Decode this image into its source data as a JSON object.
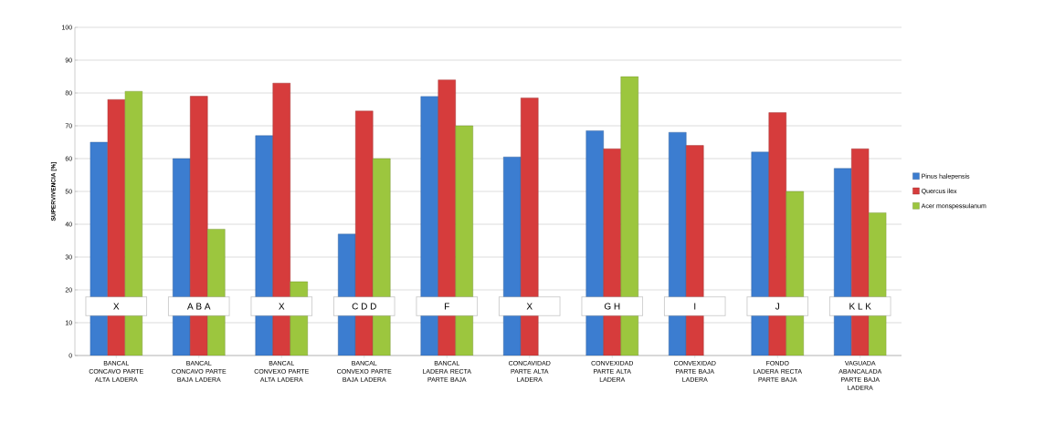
{
  "chart_data": {
    "type": "bar",
    "ylabel": "SUPERVIVENCIA  [%]",
    "categories": [
      "BANCAL CONCAVO PARTE ALTA LADERA",
      "BANCAL CONCAVO PARTE BAJA LADERA",
      "BANCAL CONVEXO PARTE ALTA LADERA",
      "BANCAL CONVEXO PARTE BAJA LADERA",
      "BANCAL LADERA RECTA PARTE BAJA",
      "CONCAVIDAD PARTE ALTA LADERA",
      "CONVEXIDAD PARTE ALTA LADERA",
      "CONVEXIDAD PARTE BAJA LADERA",
      "FONDO LADERA RECTA PARTE BAJA",
      "VAGUADA ABANCALADA PARTE BAJA LADERA"
    ],
    "series": [
      {
        "name": "Pinus halepensis",
        "color": "#3c7dd0",
        "values": [
          65,
          60,
          67,
          37,
          79,
          60.5,
          68.5,
          68,
          62,
          57
        ]
      },
      {
        "name": "Quercus ilex",
        "color": "#d63c3c",
        "values": [
          78,
          79,
          83,
          74.5,
          84,
          78.5,
          63,
          64,
          74,
          63
        ]
      },
      {
        "name": "Acer monspessulanum",
        "color": "#9cc63e",
        "values": [
          80.5,
          38.5,
          22.5,
          60,
          70,
          null,
          85,
          null,
          50,
          43.5
        ]
      }
    ],
    "annotations": [
      "X",
      "A  B  A",
      "X",
      "C  D  D",
      "F",
      "X",
      "G  H",
      "I",
      "J",
      "K  L  K"
    ],
    "ylim": [
      0,
      100
    ],
    "yticks": [
      0,
      10,
      20,
      30,
      40,
      50,
      60,
      70,
      80,
      90,
      100
    ],
    "grid": "y",
    "legend": "right"
  }
}
